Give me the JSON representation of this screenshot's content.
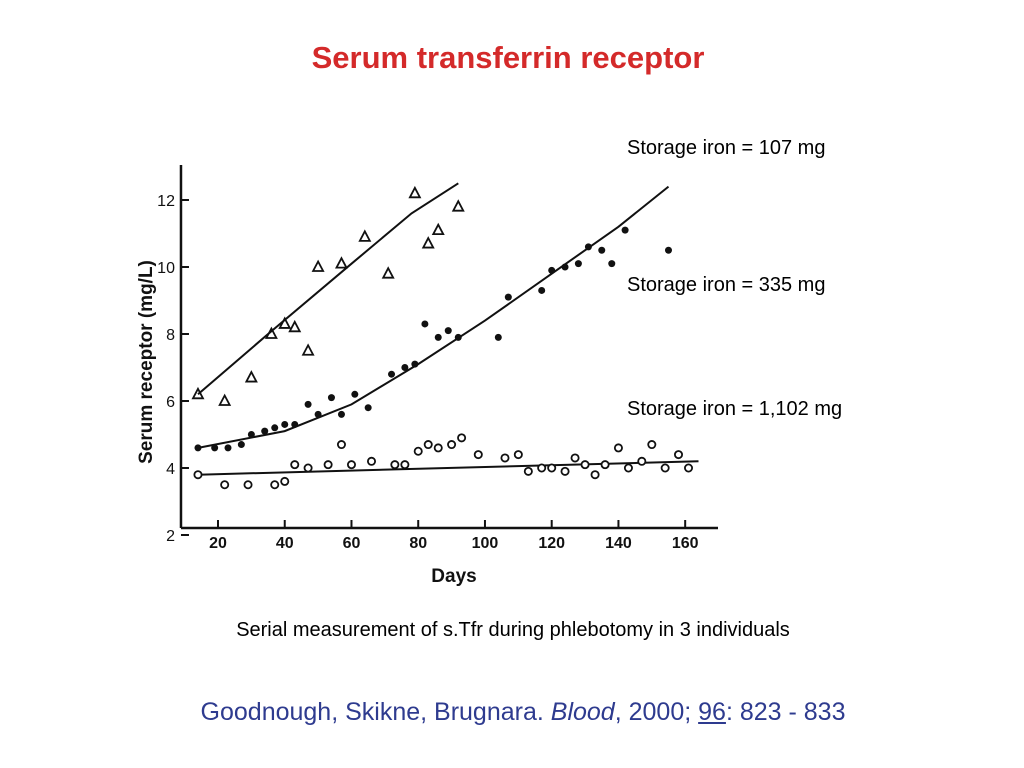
{
  "title": "Serum transferrin receptor",
  "caption": "Serial measurement of s.Tfr during phlebotomy in 3 individuals",
  "citation": {
    "authors": "Goodnough, Skikne, Brugnara. ",
    "journal": "Blood",
    "year": ", 2000; ",
    "volume": "96",
    "pages": ": 823 - 833"
  },
  "colors": {
    "title": "#d42a2a",
    "citation": "#2e3b8f",
    "ink": "#111111"
  },
  "chart_data": {
    "type": "scatter",
    "xlabel": "Days",
    "ylabel": "Serum receptor (mg/L)",
    "xlim": [
      14,
      170
    ],
    "ylim": [
      2,
      13
    ],
    "xticks": [
      20,
      40,
      60,
      80,
      100,
      120,
      140,
      160
    ],
    "yticks": [
      2,
      4,
      6,
      8,
      10,
      12
    ],
    "series": [
      {
        "name": "Storage iron = 107 mg",
        "marker": "triangle",
        "points": [
          [
            14,
            6.2
          ],
          [
            22,
            6.0
          ],
          [
            30,
            6.7
          ],
          [
            36,
            8.0
          ],
          [
            40,
            8.3
          ],
          [
            43,
            8.2
          ],
          [
            47,
            7.5
          ],
          [
            50,
            10.0
          ],
          [
            57,
            10.1
          ],
          [
            64,
            10.9
          ],
          [
            71,
            9.8
          ],
          [
            79,
            12.2
          ],
          [
            83,
            10.7
          ],
          [
            86,
            11.1
          ],
          [
            92,
            11.8
          ]
        ],
        "fit": [
          [
            14,
            6.2
          ],
          [
            35,
            8.0
          ],
          [
            60,
            10.1
          ],
          [
            78,
            11.6
          ],
          [
            92,
            12.5
          ]
        ]
      },
      {
        "name": "Storage iron = 335 mg",
        "marker": "filled-circle",
        "points": [
          [
            14,
            4.6
          ],
          [
            19,
            4.6
          ],
          [
            23,
            4.6
          ],
          [
            27,
            4.7
          ],
          [
            30,
            5.0
          ],
          [
            34,
            5.1
          ],
          [
            37,
            5.2
          ],
          [
            40,
            5.3
          ],
          [
            43,
            5.3
          ],
          [
            47,
            5.9
          ],
          [
            50,
            5.6
          ],
          [
            54,
            6.1
          ],
          [
            57,
            5.6
          ],
          [
            61,
            6.2
          ],
          [
            65,
            5.8
          ],
          [
            72,
            6.8
          ],
          [
            76,
            7.0
          ],
          [
            79,
            7.1
          ],
          [
            82,
            8.3
          ],
          [
            86,
            7.9
          ],
          [
            89,
            8.1
          ],
          [
            92,
            7.9
          ],
          [
            104,
            7.9
          ],
          [
            107,
            9.1
          ],
          [
            117,
            9.3
          ],
          [
            120,
            9.9
          ],
          [
            124,
            10.0
          ],
          [
            128,
            10.1
          ],
          [
            131,
            10.6
          ],
          [
            135,
            10.5
          ],
          [
            138,
            10.1
          ],
          [
            142,
            11.1
          ],
          [
            155,
            10.5
          ]
        ],
        "fit": [
          [
            14,
            4.6
          ],
          [
            40,
            5.1
          ],
          [
            60,
            5.9
          ],
          [
            80,
            7.1
          ],
          [
            100,
            8.4
          ],
          [
            120,
            9.8
          ],
          [
            140,
            11.2
          ],
          [
            155,
            12.4
          ]
        ]
      },
      {
        "name": "Storage iron = 1,102 mg",
        "marker": "open-circle",
        "points": [
          [
            14,
            3.8
          ],
          [
            22,
            3.5
          ],
          [
            29,
            3.5
          ],
          [
            37,
            3.5
          ],
          [
            40,
            3.6
          ],
          [
            43,
            4.1
          ],
          [
            47,
            4.0
          ],
          [
            53,
            4.1
          ],
          [
            57,
            4.7
          ],
          [
            60,
            4.1
          ],
          [
            66,
            4.2
          ],
          [
            73,
            4.1
          ],
          [
            76,
            4.1
          ],
          [
            80,
            4.5
          ],
          [
            83,
            4.7
          ],
          [
            86,
            4.6
          ],
          [
            90,
            4.7
          ],
          [
            93,
            4.9
          ],
          [
            98,
            4.4
          ],
          [
            106,
            4.3
          ],
          [
            110,
            4.4
          ],
          [
            113,
            3.9
          ],
          [
            117,
            4.0
          ],
          [
            120,
            4.0
          ],
          [
            124,
            3.9
          ],
          [
            127,
            4.3
          ],
          [
            130,
            4.1
          ],
          [
            133,
            3.8
          ],
          [
            136,
            4.1
          ],
          [
            140,
            4.6
          ],
          [
            143,
            4.0
          ],
          [
            147,
            4.2
          ],
          [
            150,
            4.7
          ],
          [
            154,
            4.0
          ],
          [
            158,
            4.4
          ],
          [
            161,
            4.0
          ]
        ],
        "fit": [
          [
            14,
            3.8
          ],
          [
            164,
            4.2
          ]
        ]
      }
    ]
  }
}
